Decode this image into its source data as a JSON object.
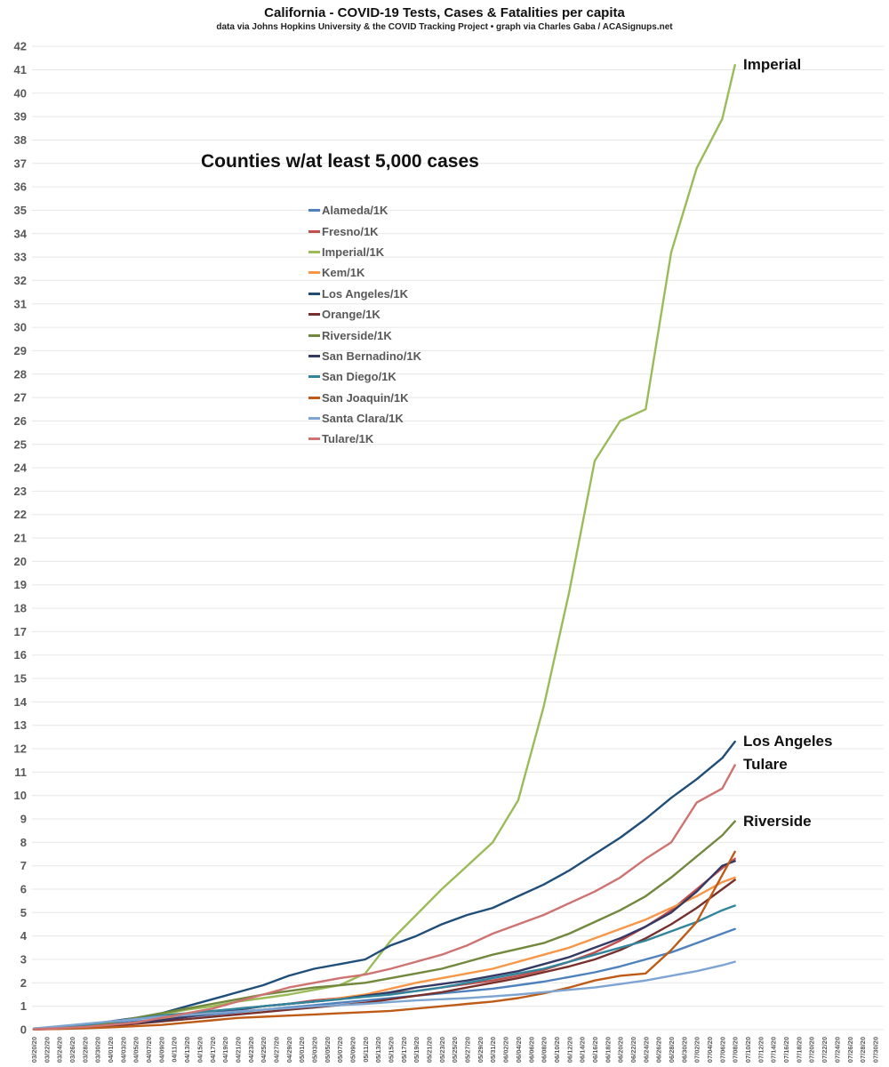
{
  "header": {
    "title": "California - COVID-19 Tests, Cases & Fatalities per capita",
    "subtitle": "data via Johns Hopkins University & the COVID Tracking Project • graph via Charles Gaba / ACASignups.net"
  },
  "chart_data": {
    "type": "line",
    "title": "California - COVID-19 Tests, Cases & Fatalities per capita",
    "legend_title": "Counties w/at least 5,000 cases",
    "grid": true,
    "legend_position": "upper-left-inside",
    "ylim": [
      0,
      42
    ],
    "y_tick_step": 1,
    "x_tick_interval_days": 2,
    "x_tick_labels": [
      "03/20/20",
      "03/22/20",
      "03/24/20",
      "03/26/20",
      "03/28/20",
      "03/30/20",
      "04/01/20",
      "04/03/20",
      "04/05/20",
      "04/07/20",
      "04/09/20",
      "04/11/20",
      "04/13/20",
      "04/15/20",
      "04/17/20",
      "04/19/20",
      "04/21/20",
      "04/23/20",
      "04/25/20",
      "04/27/20",
      "04/29/20",
      "05/01/20",
      "05/03/20",
      "05/05/20",
      "05/07/20",
      "05/09/20",
      "05/11/20",
      "05/13/20",
      "05/15/20",
      "05/17/20",
      "05/19/20",
      "05/21/20",
      "05/23/20",
      "05/25/20",
      "05/27/20",
      "05/29/20",
      "05/31/20",
      "06/02/20",
      "06/04/20",
      "06/06/20",
      "06/08/20",
      "06/10/20",
      "06/12/20",
      "06/14/20",
      "06/16/20",
      "06/18/20",
      "06/20/20",
      "06/22/20",
      "06/24/20",
      "06/26/20",
      "06/28/20",
      "06/30/20",
      "07/02/20",
      "07/04/20",
      "07/06/20",
      "07/08/20",
      "07/10/20",
      "07/12/20",
      "07/14/20",
      "07/16/20",
      "07/18/20",
      "07/20/20",
      "07/22/20",
      "07/24/20",
      "07/26/20",
      "07/28/20",
      "07/30/20"
    ],
    "x_dates": [
      "03/20/20",
      "03/24/20",
      "03/28/20",
      "04/01/20",
      "04/05/20",
      "04/09/20",
      "04/13/20",
      "04/17/20",
      "04/21/20",
      "04/25/20",
      "04/29/20",
      "05/03/20",
      "05/07/20",
      "05/11/20",
      "05/15/20",
      "05/19/20",
      "05/23/20",
      "05/27/20",
      "05/31/20",
      "06/04/20",
      "06/08/20",
      "06/12/20",
      "06/16/20",
      "06/20/20",
      "06/24/20",
      "06/28/20",
      "07/02/20",
      "07/06/20",
      "07/08/20"
    ],
    "x_days": [
      0,
      4,
      8,
      12,
      16,
      20,
      24,
      28,
      32,
      36,
      40,
      44,
      48,
      52,
      56,
      60,
      64,
      68,
      72,
      76,
      80,
      84,
      88,
      92,
      96,
      100,
      104,
      108,
      110
    ],
    "series": [
      {
        "name": "alameda",
        "label": "Alameda/1K",
        "color": "#4F81BD",
        "values": [
          0.03,
          0.08,
          0.15,
          0.25,
          0.35,
          0.45,
          0.55,
          0.65,
          0.75,
          0.85,
          0.95,
          1.05,
          1.15,
          1.25,
          1.35,
          1.45,
          1.55,
          1.65,
          1.75,
          1.9,
          2.05,
          2.25,
          2.45,
          2.7,
          3.0,
          3.3,
          3.7,
          4.1,
          4.3
        ]
      },
      {
        "name": "fresno",
        "label": "Fresno/1K",
        "color": "#C0504D",
        "values": [
          0.01,
          0.04,
          0.1,
          0.2,
          0.3,
          0.4,
          0.55,
          0.7,
          0.85,
          1.0,
          1.1,
          1.25,
          1.35,
          1.45,
          1.55,
          1.65,
          1.8,
          1.95,
          2.1,
          2.3,
          2.55,
          2.9,
          3.3,
          3.8,
          4.4,
          5.1,
          6.0,
          6.9,
          7.3
        ]
      },
      {
        "name": "imperial",
        "label": "Imperial/1K",
        "color": "#9BBB59",
        "values": [
          0.03,
          0.1,
          0.2,
          0.35,
          0.5,
          0.65,
          0.85,
          1.0,
          1.2,
          1.35,
          1.5,
          1.7,
          1.9,
          2.4,
          3.8,
          4.9,
          6.0,
          7.0,
          8.0,
          9.8,
          13.8,
          18.7,
          24.3,
          26.0,
          26.5,
          33.2,
          36.8,
          38.9,
          41.2
        ]
      },
      {
        "name": "kern",
        "label": "Kem/1K",
        "color": "#F79646",
        "values": [
          0.02,
          0.05,
          0.1,
          0.2,
          0.3,
          0.45,
          0.6,
          0.75,
          0.9,
          1.0,
          1.1,
          1.2,
          1.35,
          1.5,
          1.75,
          2.0,
          2.2,
          2.4,
          2.6,
          2.9,
          3.2,
          3.5,
          3.9,
          4.3,
          4.7,
          5.2,
          5.7,
          6.3,
          6.5
        ]
      },
      {
        "name": "los-angeles",
        "label": "Los Angeles/1K",
        "color": "#1F4E79",
        "values": [
          0.05,
          0.1,
          0.2,
          0.35,
          0.5,
          0.7,
          1.0,
          1.3,
          1.6,
          1.9,
          2.3,
          2.6,
          2.8,
          3.0,
          3.6,
          4.0,
          4.5,
          4.9,
          5.2,
          5.7,
          6.2,
          6.8,
          7.5,
          8.2,
          9.0,
          9.9,
          10.7,
          11.6,
          12.3
        ]
      },
      {
        "name": "orange",
        "label": "Orange/1K",
        "color": "#77302C",
        "values": [
          0.01,
          0.04,
          0.08,
          0.15,
          0.25,
          0.35,
          0.45,
          0.55,
          0.65,
          0.75,
          0.85,
          0.95,
          1.05,
          1.15,
          1.3,
          1.45,
          1.6,
          1.8,
          2.0,
          2.2,
          2.45,
          2.7,
          3.0,
          3.4,
          3.9,
          4.5,
          5.2,
          6.0,
          6.4
        ]
      },
      {
        "name": "riverside",
        "label": "Riverside/1K",
        "color": "#72883C",
        "values": [
          0.02,
          0.06,
          0.15,
          0.3,
          0.5,
          0.7,
          0.9,
          1.1,
          1.3,
          1.5,
          1.65,
          1.8,
          1.9,
          2.0,
          2.2,
          2.4,
          2.6,
          2.9,
          3.2,
          3.45,
          3.7,
          4.1,
          4.6,
          5.1,
          5.7,
          6.5,
          7.4,
          8.3,
          8.9
        ]
      },
      {
        "name": "san-bernadino",
        "label": "San Bernadino/1K",
        "color": "#343A63",
        "values": [
          0.02,
          0.05,
          0.1,
          0.2,
          0.3,
          0.4,
          0.55,
          0.7,
          0.85,
          1.0,
          1.1,
          1.2,
          1.3,
          1.45,
          1.6,
          1.8,
          1.95,
          2.1,
          2.3,
          2.5,
          2.8,
          3.1,
          3.5,
          3.9,
          4.4,
          5.0,
          5.9,
          7.0,
          7.2
        ]
      },
      {
        "name": "san-diego",
        "label": "San Diego/1K",
        "color": "#31859C",
        "values": [
          0.03,
          0.1,
          0.2,
          0.35,
          0.45,
          0.6,
          0.7,
          0.8,
          0.9,
          1.0,
          1.1,
          1.2,
          1.3,
          1.4,
          1.5,
          1.65,
          1.8,
          2.0,
          2.2,
          2.4,
          2.6,
          2.9,
          3.2,
          3.5,
          3.8,
          4.2,
          4.6,
          5.1,
          5.3
        ]
      },
      {
        "name": "san-joaquin",
        "label": "San Joaquin/1K",
        "color": "#BE5B17",
        "values": [
          0.01,
          0.03,
          0.06,
          0.1,
          0.15,
          0.2,
          0.3,
          0.4,
          0.5,
          0.55,
          0.6,
          0.65,
          0.7,
          0.75,
          0.8,
          0.9,
          1.0,
          1.1,
          1.2,
          1.35,
          1.55,
          1.8,
          2.1,
          2.3,
          2.4,
          3.4,
          4.6,
          6.6,
          7.6
        ]
      },
      {
        "name": "santa-clara",
        "label": "Santa Clara/1K",
        "color": "#7EA4D2",
        "values": [
          0.05,
          0.15,
          0.25,
          0.35,
          0.45,
          0.55,
          0.62,
          0.7,
          0.78,
          0.85,
          0.92,
          1.0,
          1.05,
          1.1,
          1.18,
          1.25,
          1.3,
          1.35,
          1.42,
          1.5,
          1.6,
          1.7,
          1.8,
          1.95,
          2.1,
          2.3,
          2.5,
          2.75,
          2.9
        ]
      },
      {
        "name": "tulare",
        "label": "Tulare/1K",
        "color": "#CE7371",
        "values": [
          0.02,
          0.06,
          0.12,
          0.2,
          0.3,
          0.5,
          0.7,
          0.9,
          1.2,
          1.5,
          1.8,
          2.0,
          2.2,
          2.35,
          2.6,
          2.9,
          3.2,
          3.6,
          4.1,
          4.5,
          4.9,
          5.4,
          5.9,
          6.5,
          7.3,
          8.0,
          9.7,
          10.3,
          11.3
        ]
      }
    ],
    "annotations": [
      {
        "text": "Imperial",
        "day": 110,
        "value": 41.2
      },
      {
        "text": "Los Angeles",
        "day": 110,
        "value": 12.3
      },
      {
        "text": "Tulare",
        "day": 110,
        "value": 11.3
      },
      {
        "text": "Riverside",
        "day": 110,
        "value": 8.9
      }
    ],
    "colors": {
      "grid": "#E7E7E7",
      "axis_text": "#595959",
      "title_text": "#111111",
      "background": "#FFFFFF"
    }
  }
}
